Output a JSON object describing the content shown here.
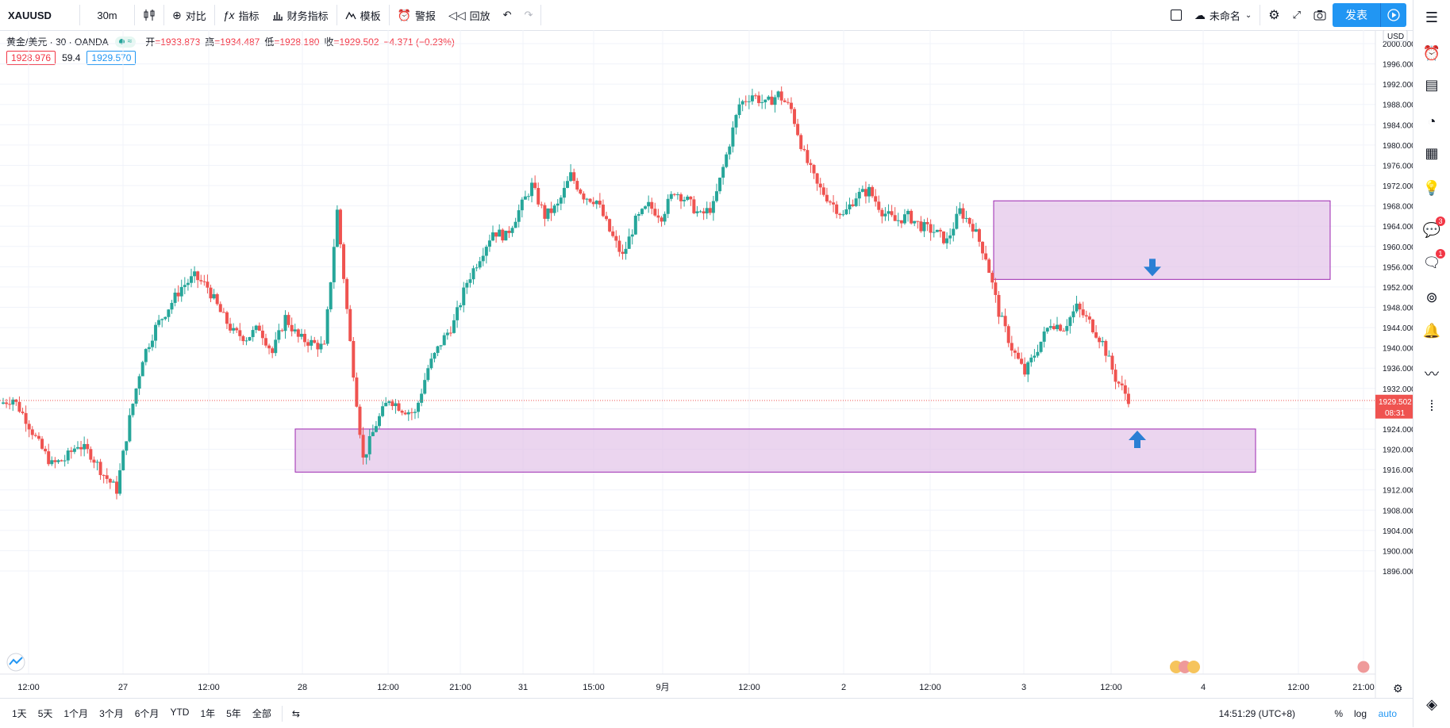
{
  "toolbar": {
    "symbol": "XAUUSD",
    "interval": "30m",
    "compare_label": "对比",
    "indicators_label": "指标",
    "financials_label": "财务指标",
    "templates_label": "模板",
    "alert_label": "警报",
    "replay_label": "回放",
    "layout_name": "未命名",
    "publish_label": "发表"
  },
  "legend": {
    "title": "黄金/美元 · 30 · OANDA",
    "badge_text": "≈",
    "open_label": "开",
    "open": "=1933.873",
    "high_label": "高",
    "high": "=1934.487",
    "low_label": "低",
    "low": "=1928.180",
    "close_label": "收",
    "close": "=1929.502",
    "change": "−4.371 (−0.23%)",
    "bid": "1928.976",
    "spread": "59.4",
    "ask": "1929.570"
  },
  "price_axis": {
    "currency": "USD",
    "ticks": [
      "2000.000",
      "1996.000",
      "1992.000",
      "1988.000",
      "1984.000",
      "1980.000",
      "1976.000",
      "1972.000",
      "1968.000",
      "1964.000",
      "1960.000",
      "1956.000",
      "1952.000",
      "1948.000",
      "1944.000",
      "1940.000",
      "1936.000",
      "1932.000",
      "1928.000",
      "1924.000",
      "1920.000",
      "1916.000",
      "1912.000",
      "1908.000",
      "1904.000",
      "1900.000",
      "1896.000"
    ],
    "last_price": "1929.502",
    "countdown": "08:31"
  },
  "time_axis": {
    "labels": [
      "12:00",
      "27",
      "12:00",
      "28",
      "12:00",
      "21:00",
      "31",
      "15:00",
      "9月",
      "12:00",
      "2",
      "12:00",
      "3",
      "12:00",
      "4",
      "12:00",
      "21:00"
    ]
  },
  "sidebar": {
    "badge_1": "3",
    "badge_2": "1"
  },
  "bottombar": {
    "ranges": [
      "1天",
      "5天",
      "1个月",
      "3个月",
      "6个月",
      "YTD",
      "1年",
      "5年",
      "全部"
    ],
    "time": "14:51:29 (UTC+8)",
    "percent_label": "%",
    "log_label": "log",
    "auto_label": "auto"
  },
  "colors": {
    "up": "#26a69a",
    "down": "#ef5350",
    "zone_fill": "#e1bee7",
    "zone_border": "#9c27b0",
    "arrow": "#2a7fd4",
    "accent": "#2196f3"
  },
  "chart_data": {
    "type": "candlestick",
    "symbol": "XAUUSD",
    "interval": "30m",
    "ylim": [
      1893,
      2002
    ],
    "x_labels": [
      "12:00",
      "27",
      "12:00",
      "28",
      "12:00",
      "21:00",
      "31",
      "15:00",
      "9月",
      "12:00",
      "2",
      "12:00",
      "3",
      "12:00",
      "4",
      "12:00",
      "21:00"
    ],
    "close_path": [
      1929,
      1930,
      1926,
      1921,
      1917,
      1918,
      1921,
      1919,
      1915,
      1912,
      1926,
      1938,
      1944,
      1948,
      1952,
      1954,
      1952,
      1947,
      1943,
      1942,
      1944,
      1939,
      1946,
      1942,
      1941,
      1940,
      1967,
      1941,
      1918,
      1925,
      1930,
      1928,
      1927,
      1936,
      1941,
      1945,
      1953,
      1958,
      1963,
      1962,
      1967,
      1972,
      1966,
      1968,
      1974,
      1970,
      1969,
      1963,
      1958,
      1965,
      1968,
      1966,
      1971,
      1969,
      1966,
      1968,
      1978,
      1988,
      1990,
      1988,
      1990,
      1987,
      1978,
      1972,
      1969,
      1966,
      1970,
      1971,
      1967,
      1965,
      1966,
      1964,
      1963,
      1961,
      1967,
      1964,
      1958,
      1947,
      1940,
      1935,
      1940,
      1945,
      1944,
      1948,
      1945,
      1941,
      1934,
      1930
    ],
    "zones": [
      {
        "from_price": 1969,
        "to_price": 1953.5,
        "direction": "down"
      },
      {
        "from_price": 1924,
        "to_price": 1915.5,
        "direction": "up"
      }
    ],
    "grid": true
  }
}
